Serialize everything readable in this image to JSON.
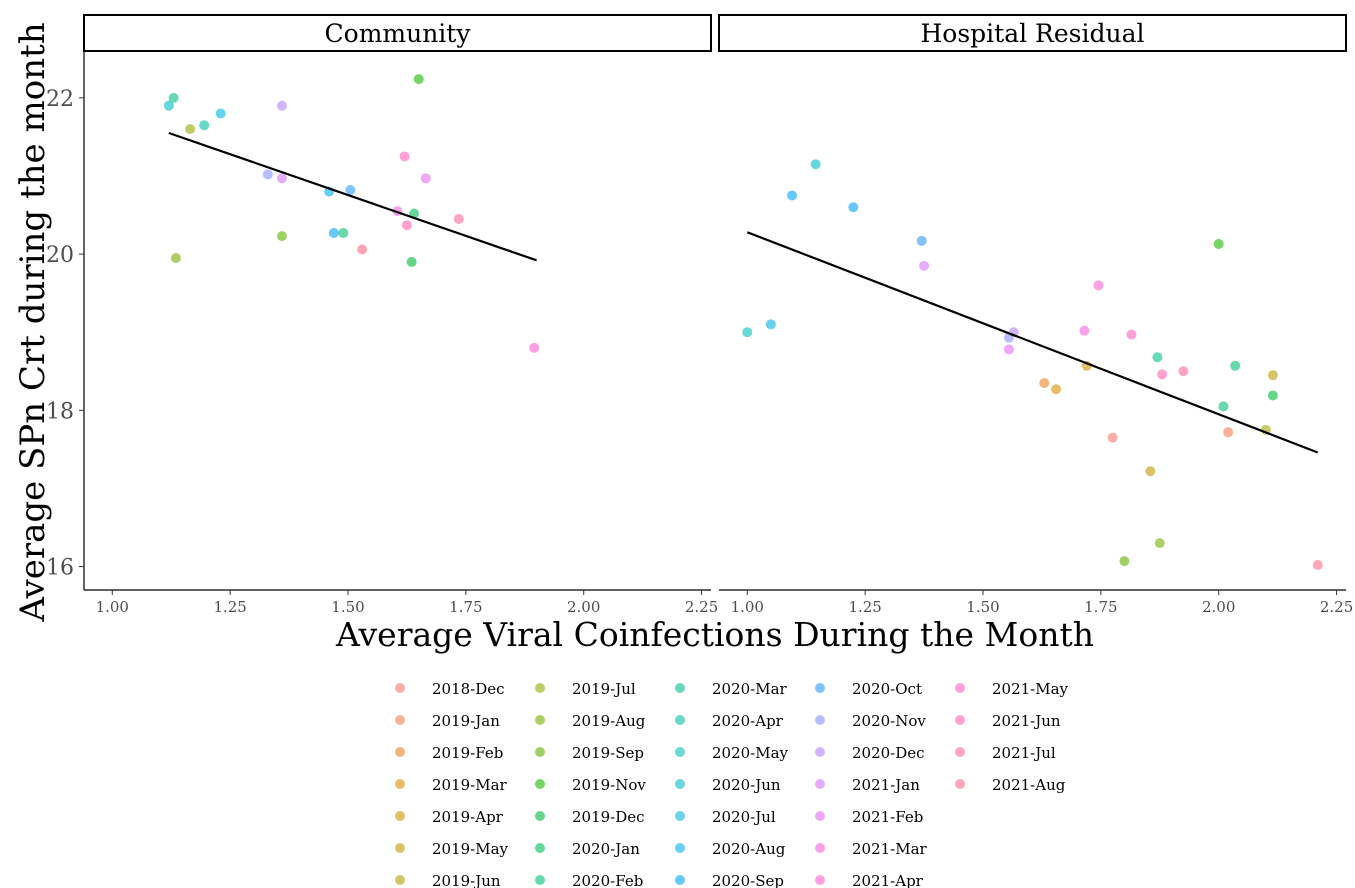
{
  "chart_data": {
    "type": "scatter",
    "xlabel": "Average Viral Coinfections During the Month",
    "ylabel": "Average SPn Crt during the month",
    "xlim": [
      0.94,
      2.27
    ],
    "ylim": [
      15.7,
      22.6
    ],
    "x_ticks": [
      1.0,
      1.25,
      1.5,
      1.75,
      2.0,
      2.25
    ],
    "x_tick_labels": [
      "1.00",
      "1.25",
      "1.50",
      "1.75",
      "2.00",
      "2.25"
    ],
    "y_ticks": [
      16,
      18,
      20,
      22
    ],
    "y_tick_labels": [
      "16",
      "18",
      "20",
      "22"
    ],
    "grid": false,
    "legend_position": "bottom",
    "legend": [
      "2018-Dec",
      "2019-Jan",
      "2019-Feb",
      "2019-Mar",
      "2019-Apr",
      "2019-May",
      "2019-Jun",
      "2019-Jul",
      "2019-Aug",
      "2019-Sep",
      "2019-Nov",
      "2019-Dec",
      "2020-Jan",
      "2020-Feb",
      "2020-Mar",
      "2020-Apr",
      "2020-May",
      "2020-Jun",
      "2020-Jul",
      "2020-Aug",
      "2020-Sep",
      "2020-Oct",
      "2020-Nov",
      "2020-Dec",
      "2021-Jan",
      "2021-Feb",
      "2021-Mar",
      "2021-Apr",
      "2021-May",
      "2021-Jun",
      "2021-Jul",
      "2021-Aug"
    ],
    "colors": {
      "2018-Dec": "#F8766D",
      "2019-Jan": "#F27D52",
      "2019-Feb": "#E88526",
      "2019-Mar": "#DC8D00",
      "2019-Apr": "#CD9600",
      "2019-May": "#BE9C00",
      "2019-Jun": "#ABA300",
      "2019-Jul": "#96A900",
      "2019-Aug": "#7CAE00",
      "2019-Sep": "#5BB300",
      "2019-Nov": "#1CB700",
      "2019-Dec": "#00BA38",
      "2020-Jan": "#00BC59",
      "2020-Feb": "#00BE73",
      "2020-Mar": "#00C08C",
      "2020-Apr": "#00C1A2",
      "2020-May": "#00BFB7",
      "2020-Jun": "#00BDCA",
      "2020-Jul": "#00B8DB",
      "2020-Aug": "#00B0EA",
      "2020-Sep": "#00A5F6",
      "2020-Oct": "#2C9BFF",
      "2020-Nov": "#8A93FF",
      "2020-Dec": "#B385FF",
      "2021-Jan": "#D078FA",
      "2021-Feb": "#E46DF0",
      "2021-Mar": "#F464E2",
      "2021-Apr": "#FD61D1",
      "2021-May": "#FF61C3",
      "2021-Jun": "#FF64B0",
      "2021-Jul": "#FF689D",
      "2021-Aug": "#FF6C8A"
    },
    "panels": [
      {
        "title": "Community",
        "trend": [
          [
            1.12,
            21.55
          ],
          [
            1.9,
            19.92
          ]
        ],
        "points": [
          {
            "x": 1.12,
            "y": 21.9,
            "month": "2020-Jun"
          },
          {
            "x": 1.13,
            "y": 22.0,
            "month": "2020-Mar"
          },
          {
            "x": 1.165,
            "y": 21.6,
            "month": "2019-Jul"
          },
          {
            "x": 1.195,
            "y": 21.65,
            "month": "2020-Apr"
          },
          {
            "x": 1.23,
            "y": 21.8,
            "month": "2020-Jul"
          },
          {
            "x": 1.36,
            "y": 21.9,
            "month": "2020-Dec"
          },
          {
            "x": 1.135,
            "y": 19.95,
            "month": "2019-Aug"
          },
          {
            "x": 1.33,
            "y": 21.02,
            "month": "2020-Nov"
          },
          {
            "x": 1.36,
            "y": 20.97,
            "month": "2021-Jan"
          },
          {
            "x": 1.36,
            "y": 20.23,
            "month": "2019-Sep"
          },
          {
            "x": 1.46,
            "y": 20.8,
            "month": "2020-Aug"
          },
          {
            "x": 1.505,
            "y": 20.82,
            "month": "2020-Oct"
          },
          {
            "x": 1.47,
            "y": 20.27,
            "month": "2020-Sep"
          },
          {
            "x": 1.49,
            "y": 20.27,
            "month": "2020-Feb"
          },
          {
            "x": 1.53,
            "y": 20.06,
            "month": "2021-Aug"
          },
          {
            "x": 1.605,
            "y": 20.55,
            "month": "2021-Mar"
          },
          {
            "x": 1.62,
            "y": 21.25,
            "month": "2021-May"
          },
          {
            "x": 1.625,
            "y": 20.37,
            "month": "2021-Jun"
          },
          {
            "x": 1.64,
            "y": 20.52,
            "month": "2020-Jan"
          },
          {
            "x": 1.635,
            "y": 19.9,
            "month": "2019-Dec"
          },
          {
            "x": 1.65,
            "y": 22.24,
            "month": "2019-Nov"
          },
          {
            "x": 1.665,
            "y": 20.97,
            "month": "2021-Feb"
          },
          {
            "x": 1.735,
            "y": 20.45,
            "month": "2021-Jul"
          },
          {
            "x": 1.895,
            "y": 18.8,
            "month": "2021-Apr"
          }
        ]
      },
      {
        "title": "Hospital Residual",
        "trend": [
          [
            1.0,
            20.28
          ],
          [
            2.21,
            17.46
          ]
        ],
        "points": [
          {
            "x": 1.0,
            "y": 19.0,
            "month": "2020-May"
          },
          {
            "x": 1.05,
            "y": 19.1,
            "month": "2020-Aug"
          },
          {
            "x": 1.095,
            "y": 20.75,
            "month": "2020-Sep"
          },
          {
            "x": 1.145,
            "y": 21.15,
            "month": "2020-Jun"
          },
          {
            "x": 1.225,
            "y": 20.6,
            "month": "2020-Sep"
          },
          {
            "x": 1.37,
            "y": 20.17,
            "month": "2020-Oct"
          },
          {
            "x": 1.375,
            "y": 19.85,
            "month": "2021-Jan"
          },
          {
            "x": 1.555,
            "y": 18.93,
            "month": "2020-Nov"
          },
          {
            "x": 1.555,
            "y": 18.78,
            "month": "2021-Feb"
          },
          {
            "x": 1.565,
            "y": 19.0,
            "month": "2020-Dec"
          },
          {
            "x": 1.63,
            "y": 18.35,
            "month": "2019-Feb"
          },
          {
            "x": 1.655,
            "y": 18.27,
            "month": "2019-Mar"
          },
          {
            "x": 1.715,
            "y": 19.02,
            "month": "2021-Mar"
          },
          {
            "x": 1.72,
            "y": 18.57,
            "month": "2019-Apr"
          },
          {
            "x": 1.745,
            "y": 19.6,
            "month": "2021-Apr"
          },
          {
            "x": 1.775,
            "y": 17.65,
            "month": "2018-Dec"
          },
          {
            "x": 1.8,
            "y": 16.07,
            "month": "2019-Sep"
          },
          {
            "x": 1.815,
            "y": 18.97,
            "month": "2021-May"
          },
          {
            "x": 1.855,
            "y": 17.22,
            "month": "2019-May"
          },
          {
            "x": 1.87,
            "y": 18.68,
            "month": "2020-Mar"
          },
          {
            "x": 1.875,
            "y": 16.3,
            "month": "2019-Aug"
          },
          {
            "x": 1.88,
            "y": 18.46,
            "month": "2021-Jun"
          },
          {
            "x": 1.925,
            "y": 18.5,
            "month": "2021-Jul"
          },
          {
            "x": 2.0,
            "y": 20.13,
            "month": "2019-Nov"
          },
          {
            "x": 2.01,
            "y": 18.05,
            "month": "2020-Feb"
          },
          {
            "x": 2.02,
            "y": 17.72,
            "month": "2019-Jan"
          },
          {
            "x": 2.035,
            "y": 18.57,
            "month": "2020-Feb"
          },
          {
            "x": 2.1,
            "y": 17.75,
            "month": "2019-Jun"
          },
          {
            "x": 2.115,
            "y": 18.45,
            "month": "2019-May"
          },
          {
            "x": 2.115,
            "y": 18.19,
            "month": "2019-Dec"
          },
          {
            "x": 2.21,
            "y": 16.02,
            "month": "2021-Aug"
          }
        ]
      }
    ]
  }
}
